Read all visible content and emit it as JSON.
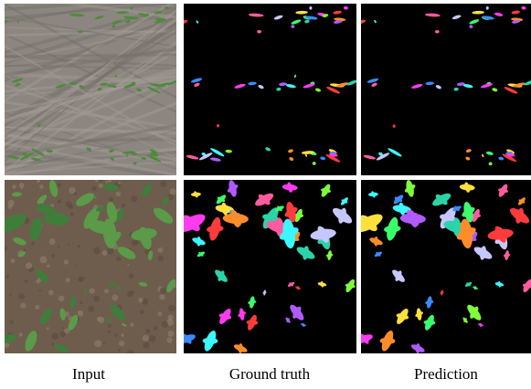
{
  "figure": {
    "captions": [
      "Input",
      "Ground truth",
      "Prediction"
    ]
  }
}
